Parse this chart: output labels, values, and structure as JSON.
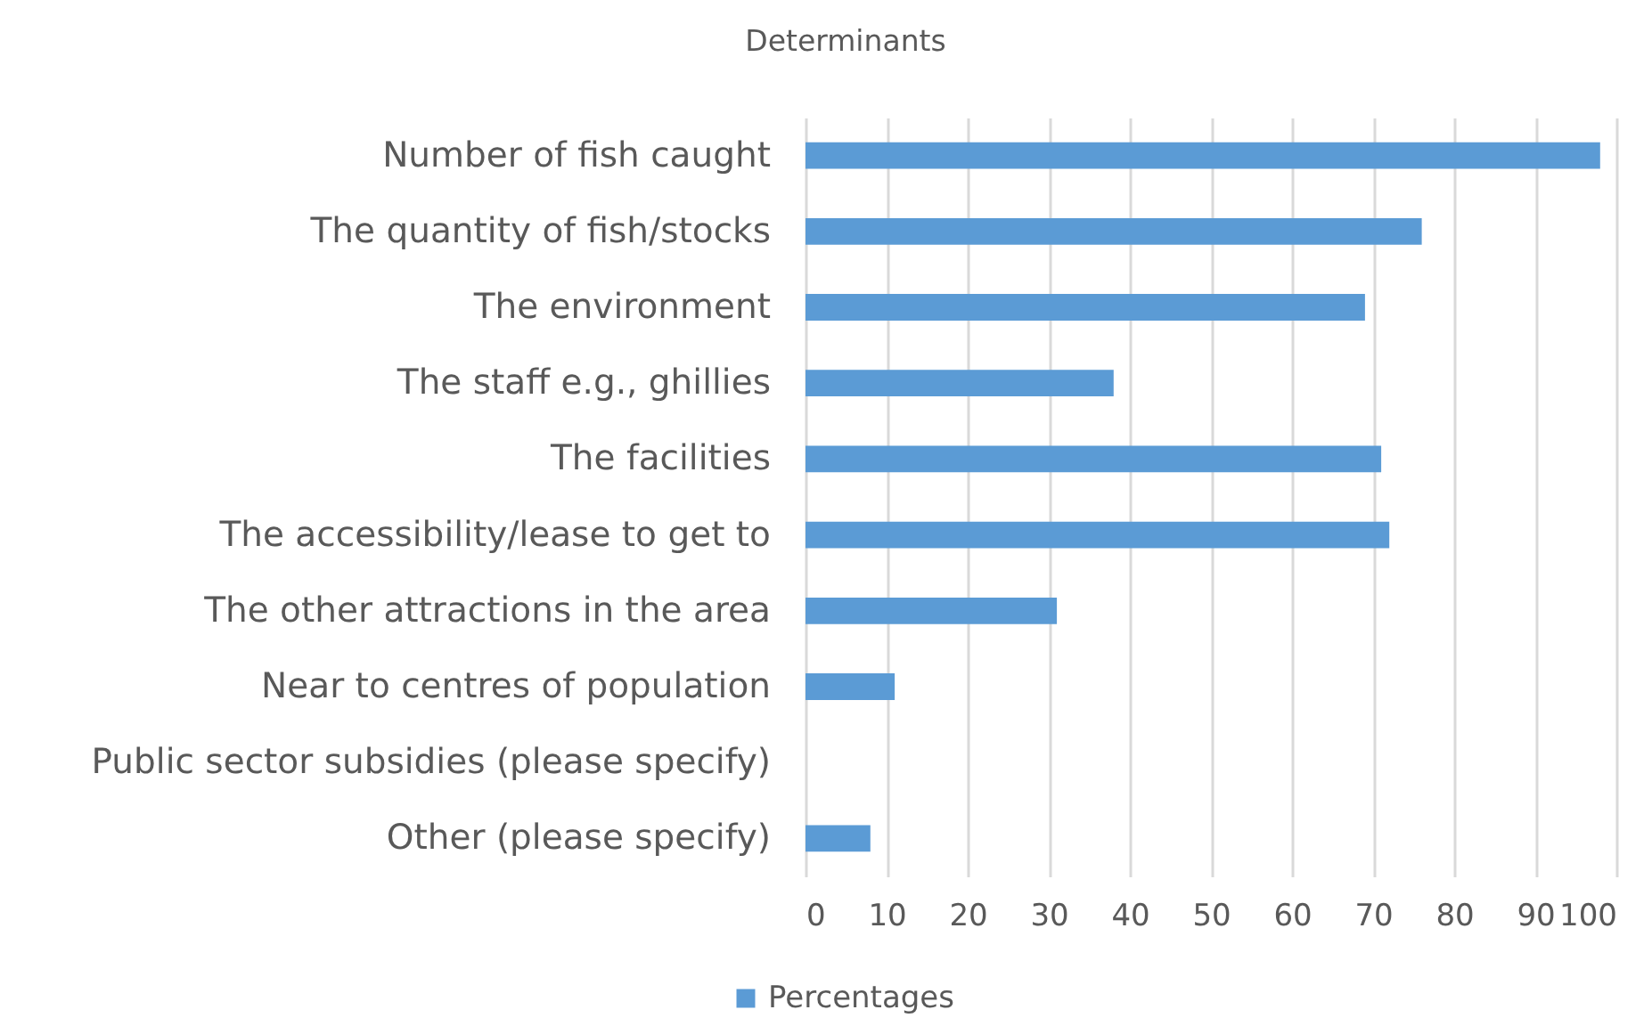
{
  "chart_data": {
    "type": "bar",
    "orientation": "horizontal",
    "title": "Determinants",
    "categories": [
      "Number of fish caught",
      "The quantity of fish/stocks",
      "The environment",
      "The staff e.g., ghillies",
      "The facilities",
      "The accessibility/lease to get to",
      "The other attractions in the area",
      "Near to centres of population",
      "Public sector subsidies (please specify)",
      "Other (please specify)"
    ],
    "series": [
      {
        "name": "Percentages",
        "color": "#5b9bd5",
        "values": [
          98,
          76,
          69,
          38,
          71,
          72,
          31,
          11,
          0,
          8
        ]
      }
    ],
    "xlim": [
      0,
      100
    ],
    "xticks": [
      0,
      10,
      20,
      30,
      40,
      50,
      60,
      70,
      80,
      90,
      100
    ],
    "grid": "x",
    "legend": "bottom"
  }
}
